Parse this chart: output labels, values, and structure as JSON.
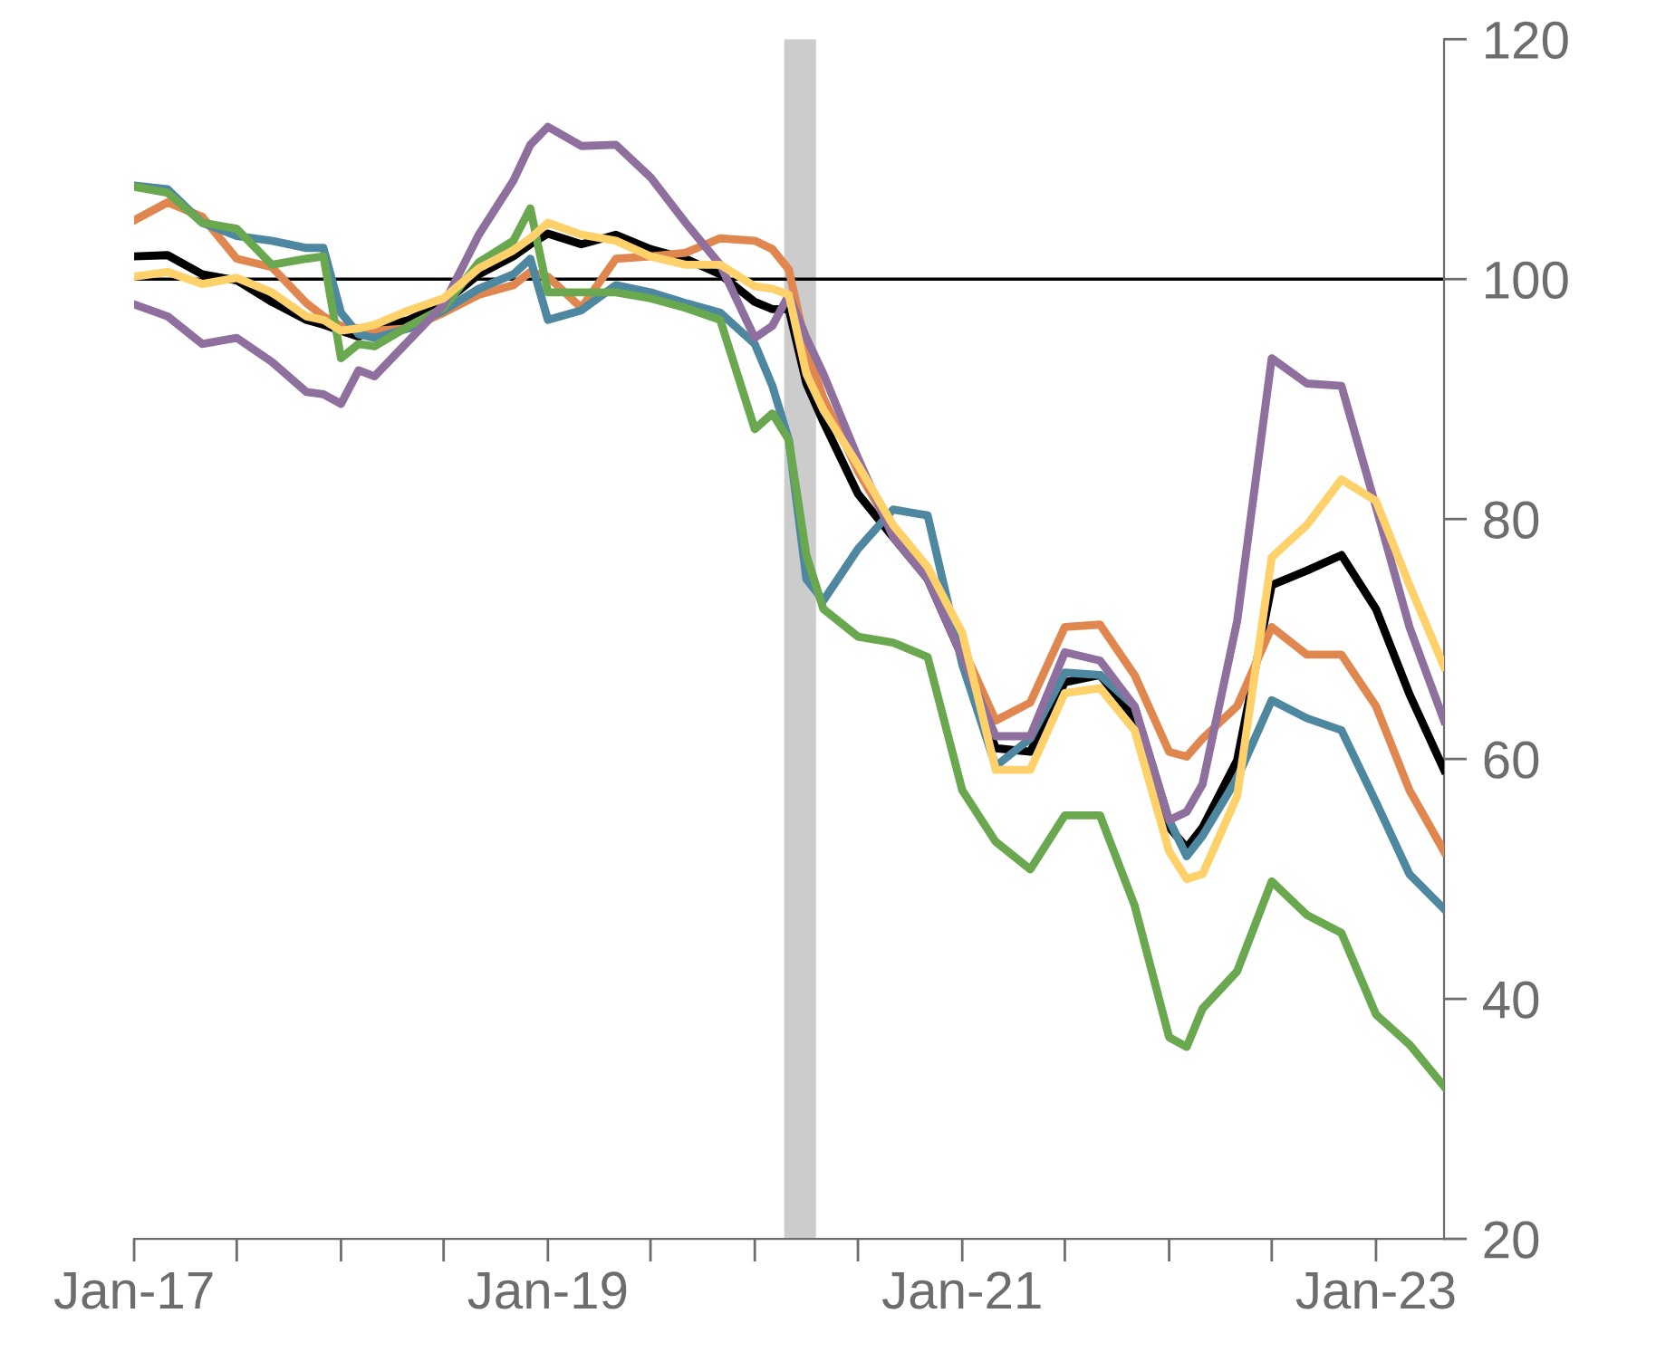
{
  "chart_data": {
    "type": "line",
    "x": [
      "2017-01",
      "2017-03",
      "2017-05",
      "2017-07",
      "2017-09",
      "2017-11",
      "2017-12",
      "2018-01",
      "2018-02",
      "2018-03",
      "2018-05",
      "2018-07",
      "2018-09",
      "2018-11",
      "2018-12",
      "2019-01",
      "2019-03",
      "2019-05",
      "2019-07",
      "2019-09",
      "2019-11",
      "2020-01",
      "2020-02",
      "2020-03",
      "2020-04",
      "2020-05",
      "2020-07",
      "2020-09",
      "2020-11",
      "2021-01",
      "2021-03",
      "2021-05",
      "2021-07",
      "2021-09",
      "2021-11",
      "2022-01",
      "2022-02",
      "2022-03",
      "2022-05",
      "2022-07",
      "2022-09",
      "2022-11",
      "2023-01",
      "2023-03",
      "2023-05"
    ],
    "series": [
      {
        "color": "#000000",
        "values": [
          101.9,
          102.0,
          100.4,
          99.9,
          98.1,
          96.6,
          96.2,
          95.7,
          95.2,
          95.9,
          96.6,
          98.0,
          100.4,
          101.9,
          102.9,
          103.8,
          102.9,
          103.7,
          102.5,
          101.7,
          100.4,
          98.1,
          97.5,
          97.5,
          91.3,
          88.1,
          82.1,
          78.5,
          75.0,
          68.5,
          60.9,
          60.6,
          66.4,
          67.0,
          63.4,
          54.3,
          52.6,
          54.3,
          59.9,
          74.5,
          75.7,
          77.0,
          72.5,
          65.4,
          59.1
        ]
      },
      {
        "color": "#e0874f",
        "values": [
          104.9,
          106.4,
          105.2,
          101.7,
          101.0,
          98.0,
          96.9,
          96.1,
          95.9,
          95.7,
          95.9,
          97.2,
          98.7,
          99.5,
          100.6,
          100.2,
          97.6,
          101.7,
          101.9,
          102.2,
          103.4,
          103.2,
          102.5,
          100.8,
          94.2,
          90.1,
          84.0,
          79.0,
          75.5,
          69.4,
          63.2,
          64.7,
          71.0,
          71.2,
          67.0,
          60.6,
          60.2,
          61.7,
          64.4,
          71.0,
          68.7,
          68.7,
          64.4,
          57.4,
          52.3
        ]
      },
      {
        "color": "#4e87a0",
        "values": [
          107.8,
          107.5,
          104.7,
          103.6,
          103.2,
          102.6,
          102.6,
          97.2,
          95.4,
          95.1,
          95.9,
          97.4,
          99.2,
          100.4,
          101.7,
          96.6,
          97.4,
          99.5,
          98.9,
          98.0,
          97.2,
          94.6,
          91.1,
          86.6,
          75.0,
          73.2,
          77.5,
          80.8,
          80.3,
          67.9,
          59.4,
          61.7,
          67.2,
          67.0,
          64.4,
          54.9,
          51.9,
          53.6,
          58.4,
          64.9,
          63.4,
          62.4,
          56.4,
          50.4,
          47.5
        ]
      },
      {
        "color": "#6aa84f",
        "values": [
          107.7,
          107.2,
          104.7,
          104.2,
          101.2,
          101.7,
          101.9,
          93.4,
          94.6,
          94.4,
          96.1,
          97.6,
          101.4,
          103.2,
          105.9,
          98.9,
          98.9,
          98.9,
          98.4,
          97.6,
          96.6,
          87.5,
          88.8,
          86.6,
          77.0,
          72.5,
          70.2,
          69.7,
          68.5,
          57.4,
          53.1,
          50.8,
          55.3,
          55.3,
          47.8,
          36.8,
          36.0,
          39.2,
          42.3,
          49.8,
          47.0,
          45.5,
          38.7,
          36.2,
          32.7
        ]
      },
      {
        "color": "#8e6f9e",
        "values": [
          97.9,
          96.9,
          94.6,
          95.1,
          93.1,
          90.6,
          90.4,
          89.6,
          92.4,
          91.9,
          94.9,
          97.9,
          103.7,
          108.2,
          111.2,
          112.7,
          111.1,
          111.2,
          108.5,
          104.7,
          101.2,
          95.1,
          96.1,
          98.7,
          95.1,
          92.1,
          85.1,
          78.5,
          75.0,
          68.5,
          61.9,
          61.9,
          68.9,
          68.2,
          64.4,
          54.9,
          55.6,
          57.9,
          71.5,
          93.4,
          91.3,
          91.1,
          81.0,
          71.0,
          63.2
        ]
      },
      {
        "color": "#ffd16b",
        "values": [
          100.2,
          100.6,
          99.6,
          100.1,
          98.9,
          96.9,
          96.6,
          95.7,
          95.9,
          96.2,
          97.4,
          98.4,
          100.9,
          102.4,
          103.4,
          104.7,
          103.7,
          103.2,
          101.9,
          101.2,
          101.2,
          99.4,
          99.2,
          98.7,
          92.1,
          89.1,
          84.5,
          79.5,
          76.0,
          70.5,
          59.1,
          59.1,
          65.5,
          65.9,
          62.4,
          52.3,
          50.0,
          50.4,
          56.9,
          76.8,
          79.5,
          83.3,
          81.5,
          74.5,
          67.7
        ]
      }
    ],
    "xlim": [
      "2017-01",
      "2023-05"
    ],
    "xticks": [
      {
        "value": "2017-01",
        "label": "Jan-17"
      },
      {
        "value": "2017-07",
        "label": null
      },
      {
        "value": "2018-01",
        "label": null
      },
      {
        "value": "2018-07",
        "label": null
      },
      {
        "value": "2019-01",
        "label": "Jan-19"
      },
      {
        "value": "2019-07",
        "label": null
      },
      {
        "value": "2020-01",
        "label": null
      },
      {
        "value": "2020-07",
        "label": null
      },
      {
        "value": "2021-01",
        "label": "Jan-21"
      },
      {
        "value": "2021-07",
        "label": null
      },
      {
        "value": "2022-01",
        "label": null
      },
      {
        "value": "2022-07",
        "label": null
      },
      {
        "value": "2023-01",
        "label": "Jan-23"
      }
    ],
    "ylim": [
      20,
      120
    ],
    "yticks": [
      20,
      40,
      60,
      80,
      100,
      120
    ],
    "ref_lines": [
      {
        "axis": "y",
        "value": 100,
        "color": "#000000"
      }
    ],
    "bands": [
      {
        "axis": "x",
        "from": "2020-02-22",
        "to": "2020-04-18",
        "color": "#cccccc"
      }
    ],
    "grid": false,
    "legend": false,
    "marker": "none",
    "line_style": "solid"
  }
}
